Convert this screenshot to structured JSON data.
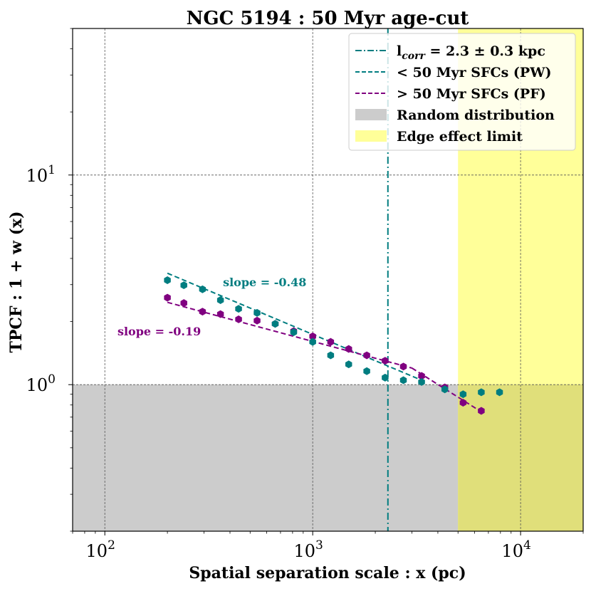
{
  "chart_data": {
    "type": "scatter",
    "title": "NGC 5194 : 50 Myr age-cut",
    "xlabel": "Spatial separation scale : x (pc)",
    "ylabel": "TPCF : 1 + w (x)",
    "xscale": "log",
    "yscale": "log",
    "xlim": [
      70,
      20000
    ],
    "ylim": [
      0.2,
      50
    ],
    "xticks": [
      {
        "value": 100,
        "base": "10",
        "exp": "2"
      },
      {
        "value": 1000,
        "base": "10",
        "exp": "3"
      },
      {
        "value": 10000,
        "base": "10",
        "exp": "4"
      }
    ],
    "yticks": [
      {
        "value": 1,
        "base": "10",
        "exp": "0"
      },
      {
        "value": 10,
        "base": "10",
        "exp": "1"
      }
    ],
    "grid": true,
    "legend_position": "top-right",
    "colors": {
      "young": "#007d80",
      "old": "#800080",
      "lcorr": "#007d80",
      "random": "#cccccc",
      "edge": "#ffff99",
      "overlap": "#e0df7a"
    },
    "random_distribution_max": 1.0,
    "edge_effect_start": 5000,
    "lcorr_value": 2300,
    "series": [
      {
        "name": "< 50 Myr SFCs (PW)",
        "color": "#007d80",
        "x": [
          200,
          240,
          295,
          360,
          440,
          540,
          660,
          810,
          1000,
          1220,
          1490,
          1820,
          2230,
          2730,
          3340,
          4320,
          5290,
          6470,
          7920
        ],
        "y": [
          3.15,
          2.98,
          2.85,
          2.53,
          2.3,
          2.2,
          1.95,
          1.78,
          1.6,
          1.38,
          1.25,
          1.16,
          1.08,
          1.05,
          1.03,
          0.95,
          0.9,
          0.92,
          0.92
        ],
        "fit": {
          "x": [
            200,
            3500
          ],
          "y": [
            3.4,
            1.03
          ]
        }
      },
      {
        "name": "> 50 Myr SFCs (PF)",
        "color": "#800080",
        "x": [
          200,
          240,
          295,
          360,
          440,
          540,
          660,
          810,
          1000,
          1220,
          1490,
          1820,
          2230,
          2730,
          3340,
          4320,
          5290,
          6470
        ],
        "y": [
          2.6,
          2.45,
          2.23,
          2.17,
          2.05,
          2.02,
          1.95,
          1.8,
          1.7,
          1.6,
          1.48,
          1.38,
          1.3,
          1.22,
          1.1,
          0.97,
          0.82,
          0.75
        ],
        "fit_upper": {
          "x": [
            200,
            3000
          ],
          "y": [
            2.47,
            1.2
          ]
        },
        "fit_lower": {
          "x": [
            3000,
            6500
          ],
          "y": [
            1.2,
            0.74
          ]
        }
      }
    ],
    "annotations": [
      {
        "text": "slope = -0.48",
        "color": "#007d80",
        "x": 370,
        "y": 2.95
      },
      {
        "text": "slope = -0.19",
        "color": "#800080",
        "x": 115,
        "y": 1.72
      }
    ],
    "legend": [
      {
        "label_main": "l",
        "label_sub": "corr",
        "label_rest": " = 2.3 ± 0.3 kpc",
        "style": "dashdot",
        "color": "#007d80"
      },
      {
        "label": "< 50 Myr SFCs (PW)",
        "style": "dashed",
        "color": "#007d80"
      },
      {
        "label": "> 50 Myr SFCs (PF)",
        "style": "dashed",
        "color": "#800080"
      },
      {
        "label": "Random distribution",
        "style": "patch",
        "color": "#cccccc"
      },
      {
        "label": "Edge effect limit",
        "style": "patch",
        "color": "#ffff99"
      }
    ]
  }
}
